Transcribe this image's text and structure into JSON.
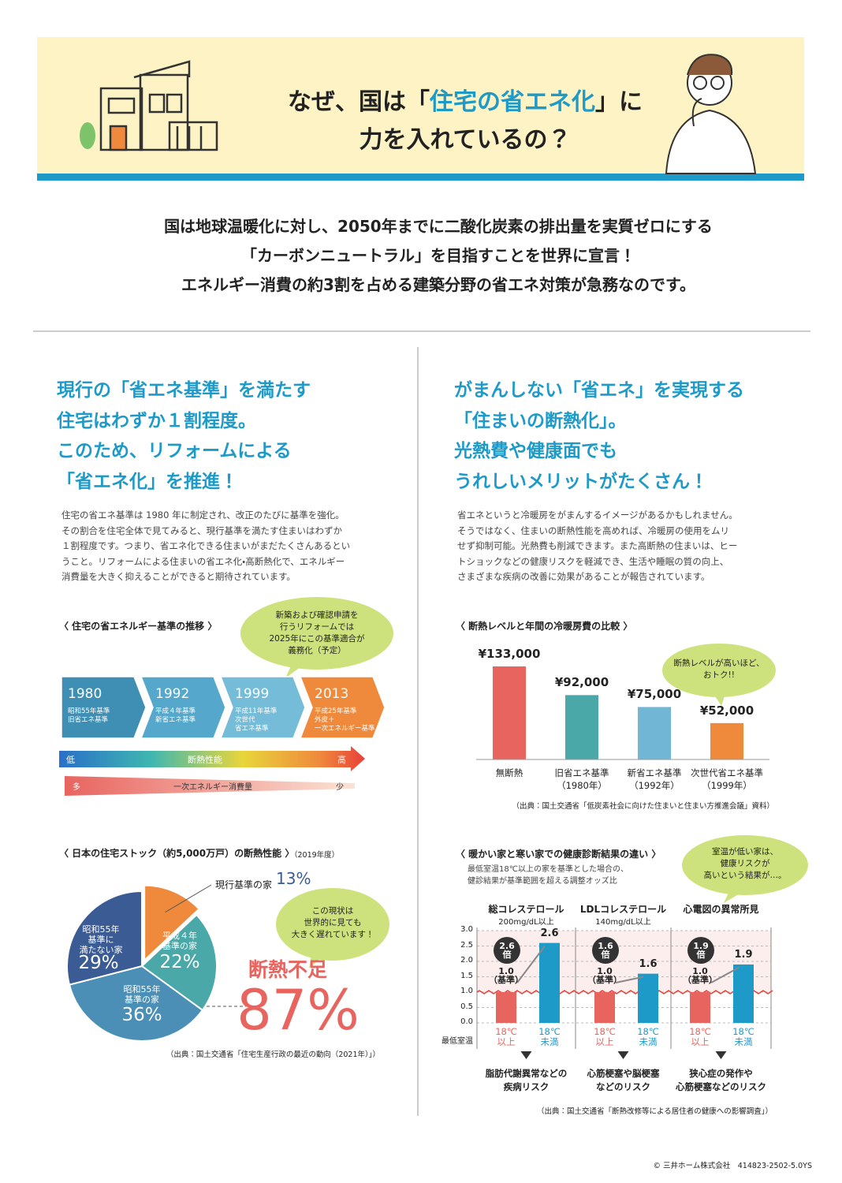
{
  "header": {
    "title_pre": "なぜ、国は「",
    "title_highlight": "住宅の省エネ化",
    "title_post": "」に",
    "title_line2": "力を入れているの？"
  },
  "intro": [
    "国は地球温暖化に対し、2050年までに二酸化炭素の排出量を実質ゼロにする",
    "「カーボンニュートラル」を目指すことを世界に宣言！",
    "エネルギー消費の約3割を占める建築分野の省エネ対策が急務なのです。"
  ],
  "left": {
    "headline": "現行の「省エネ基準」を満たす\n住宅はわずか１割程度。\nこのため、リフォームによる\n「省エネ化」を推進！",
    "body": "住宅の省エネ基準は 1980 年に制定され、改正のたびに基準を強化。\nその割合を住宅全体で見てみると、現行基準を満たす住まいはわずか\n１割程度です。つまり、省エネ化できる住まいがまだたくさんあるとい\nうこと。リフォームによる住まいの省エネ化・高断熱化で、エネルギー\n消費量を大きく抑えることができると期待されています。",
    "timeline": {
      "title": "〈 住宅の省エネルギー基準の推移 〉",
      "callout": "新築および確認申請を\n行うリフォームでは\n2025年にこの基準適合が\n義務化（予定）",
      "steps": [
        {
          "year": "1980",
          "label": "昭和55年基準\n旧省エネ基準"
        },
        {
          "year": "1992",
          "label": "平成４年基準\n新省エネ基準"
        },
        {
          "year": "1999",
          "label": "平成11年基準\n次世代\n省エネ基準"
        },
        {
          "year": "2013",
          "label": "平成25年基準\n外皮＋\n一次エネルギー基準"
        }
      ],
      "performance": {
        "low": "低",
        "label": "断熱性能",
        "high": "高"
      },
      "consumption": {
        "many": "多",
        "label": "一次エネルギー消費量",
        "few": "少"
      }
    }
  },
  "right": {
    "headline": "がまんしない「省エネ」を実現する\n「住まいの断熱化」。\n光熱費や健康面でも\nうれしいメリットがたくさん！",
    "body": "省エネというと冷暖房をがまんするイメージがあるかもしれません。\nそうではなく、住まいの断熱性能を高めれば、冷暖房の使用をムリ\nせず抑制可能。光熱費も削減できます。また高断熱の住まいは、ヒー\nトショックなどの健康リスクを軽減でき、生活や睡眠の質の向上、\nさまざまな疾病の改善に効果があることが報告されています。"
  },
  "chart_data": [
    {
      "type": "pie",
      "title": "〈 日本の住宅ストック（約5,000万戸）の断熱性能 〉",
      "title_note": "（2019年度）",
      "categories": [
        "現行基準の家",
        "平成４年\n基準の家",
        "昭和55年\n基準の家",
        "昭和55年\n基準に\n満たない家"
      ],
      "values": [
        13,
        22,
        36,
        29
      ],
      "value_labels": [
        "13%",
        "22%",
        "36%",
        "29%"
      ],
      "colors": [
        "#ef8a3c",
        "#4aa8a8",
        "#4b8fb6",
        "#3b5b94"
      ],
      "callout": "この現状は\n世界的に見ても\n大きく遅れています！",
      "summary": {
        "label": "断熱不足",
        "value": "87%"
      },
      "source": "（出典：国土交通省「住宅生産行政の最近の動向（2021年）」）"
    },
    {
      "type": "bar",
      "title": "〈 断熱レベルと年間の冷暖房費の比較 〉",
      "categories": [
        "無断熱",
        "旧省エネ基準\n（1980年）",
        "新省エネ基準\n（1992年）",
        "次世代省エネ基準\n（1999年）"
      ],
      "values": [
        133000,
        92000,
        75000,
        52000
      ],
      "value_labels": [
        "¥133,000",
        "¥92,000",
        "¥75,000",
        "¥52,000"
      ],
      "colors": [
        "#e8645f",
        "#4aa8a8",
        "#72b6d6",
        "#ef8a3c"
      ],
      "callout": "断熱レベルが高いほど、\nおトク!!",
      "source": "（出典：国土交通省「低炭素社会に向けた住まいと住まい方推進会議」資料）"
    },
    {
      "type": "grouped-bar",
      "title": "〈 暖かい家と寒い家での健康診断結果の違い 〉",
      "subtitle": "最低室温18℃以上の家を基準とした場合の、\n健診結果が基準範囲を超える調整オッズ比",
      "callout": "室温が低い家は、\n健康リスクが\n高いという結果が…。",
      "categories": [
        "総コレステロール",
        "LDLコレステロール",
        "心電図の異常所見"
      ],
      "category_notes": [
        "200mg/dL以上",
        "140mg/dL以上",
        null
      ],
      "x_label": "最低室温",
      "series": [
        {
          "name": "18℃\n以上",
          "color": "#e8645f",
          "values": [
            1.0,
            1.0,
            1.0
          ],
          "value_labels": [
            "1.0\n（基準）",
            "1.0\n（基準）",
            "1.0\n（基準）"
          ]
        },
        {
          "name": "18℃\n未満",
          "color": "#1e9ac9",
          "values": [
            2.6,
            1.6,
            1.9
          ],
          "value_labels": [
            "2.6",
            "1.6",
            "1.9"
          ]
        }
      ],
      "ratio_labels": [
        "2.6\n倍",
        "1.6\n倍",
        "1.9\n倍"
      ],
      "reference_line": 1,
      "ylim": [
        0,
        3
      ],
      "yticks": [
        {
          "value": 0,
          "label": "0.0"
        },
        {
          "value": 0.5,
          "label": "0.5"
        },
        {
          "value": 1,
          "label": "1.0"
        },
        {
          "value": 1.5,
          "label": "1.5"
        },
        {
          "value": 2,
          "label": "2.0"
        },
        {
          "value": 2.5,
          "label": "2.5"
        },
        {
          "value": 3,
          "label": "3.0"
        }
      ],
      "grid": true,
      "outcomes": [
        "脂肪代謝異常などの\n疾病リスク",
        "心筋梗塞や脳梗塞\nなどのリスク",
        "狭心症の発作や\n心筋梗塞などのリスク"
      ],
      "source": "（出典：国土交通省「断熱改修等による居住者の健康への影響調査」）"
    }
  ],
  "footer": "© 三井ホーム株式会社　414823-2502-5.0YS"
}
